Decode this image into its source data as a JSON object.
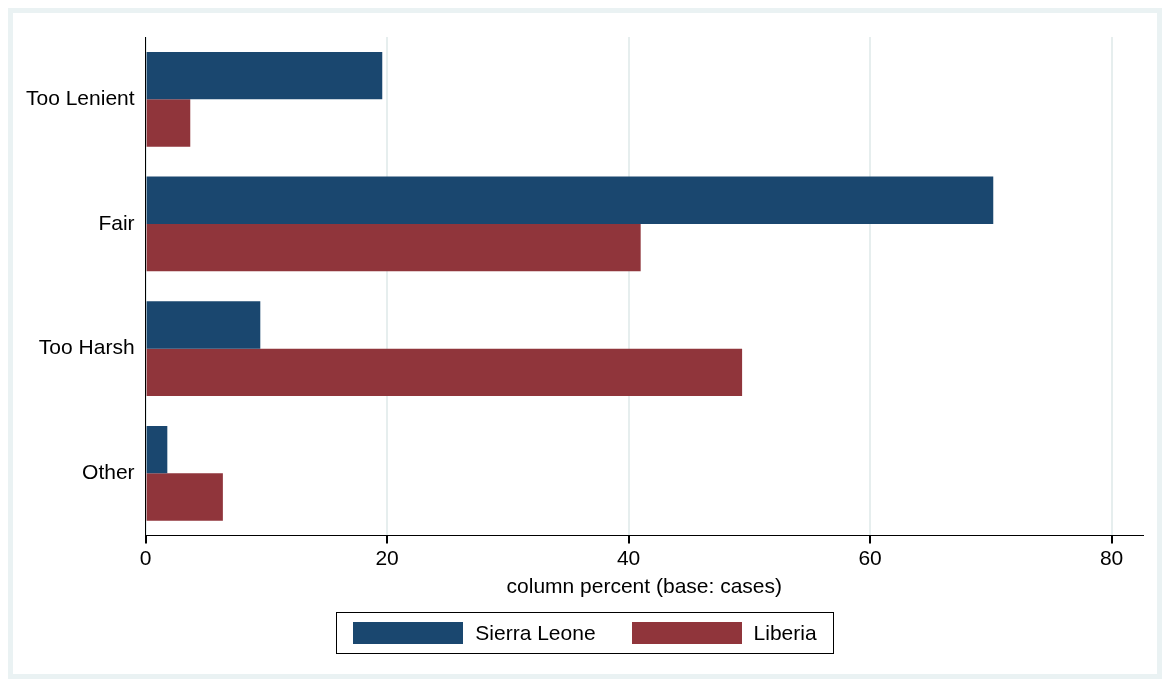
{
  "chart_data": {
    "type": "bar",
    "orientation": "horizontal",
    "xlabel": "column percent (base: cases)",
    "categories": [
      "Too Lenient",
      "Fair",
      "Too Harsh",
      "Other"
    ],
    "series": [
      {
        "name": "Sierra Leone",
        "color": "#1a476f",
        "values": [
          19.6,
          70.2,
          9.5,
          1.8
        ]
      },
      {
        "name": "Liberia",
        "color": "#90353b",
        "values": [
          3.7,
          41.0,
          49.4,
          6.4
        ]
      }
    ],
    "xlim": [
      0,
      82.6
    ],
    "xticks": [
      0,
      20,
      40,
      60,
      80
    ],
    "grid": "x",
    "legend": "bottom"
  }
}
